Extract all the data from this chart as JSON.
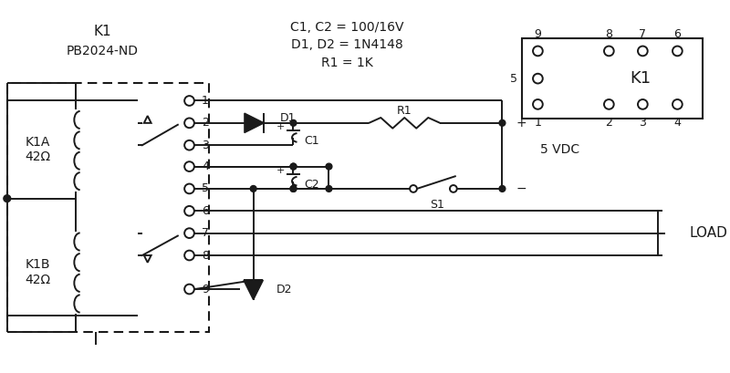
{
  "title_k1": "K1",
  "title_part": "PB2024-ND",
  "bom_line1": "C1, C2 = 100/16V",
  "bom_line2": "D1, D2 = 1N4148",
  "bom_line3": "R1 = 1K",
  "color_line": "#1a1a1a",
  "color_bg": "#ffffff",
  "vdc_label": "+ 5 VDC",
  "load_label": "LOAD",
  "k1a_label": "K1A\n42Ω",
  "k1b_label": "K1B\n42Ω",
  "s1_label": "S1",
  "r1_label": "R1",
  "d1_label": "D1",
  "d2_label": "D2",
  "c1_label": "C1",
  "c2_label": "C2",
  "k1_box_label": "K1",
  "fp_top_pins": [
    "9",
    "8",
    "7",
    "6"
  ],
  "fp_bot_pins": [
    "1",
    "2",
    "3",
    "4"
  ],
  "fp_left_pin": "5"
}
